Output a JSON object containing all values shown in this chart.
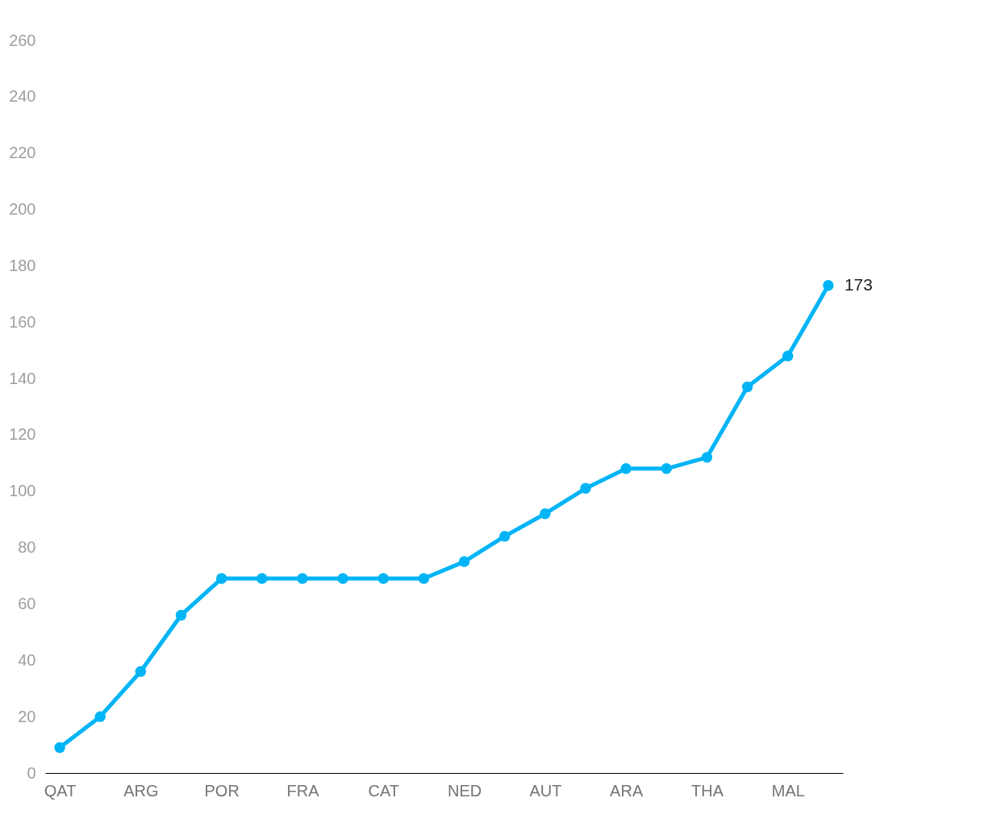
{
  "chart_data": {
    "type": "line",
    "categories": [
      "QAT",
      null,
      "ARG",
      null,
      "POR",
      null,
      "FRA",
      null,
      "CAT",
      null,
      "NED",
      null,
      "AUT",
      null,
      "ARA",
      null,
      "THA",
      null,
      "MAL",
      null
    ],
    "series": [
      {
        "color": "#00b4f5",
        "values": [
          9,
          20,
          36,
          56,
          69,
          69,
          69,
          69,
          69,
          69,
          75,
          84,
          92,
          101,
          108,
          108,
          112,
          137,
          148,
          173
        ],
        "value_labels": [
          null,
          null,
          null,
          null,
          null,
          null,
          null,
          null,
          null,
          null,
          null,
          null,
          null,
          null,
          null,
          null,
          null,
          null,
          null,
          "173"
        ]
      }
    ],
    "ylim": [
      0,
      260
    ],
    "yticks": [
      0,
      20,
      40,
      60,
      80,
      100,
      120,
      140,
      160,
      180,
      200,
      220,
      240,
      260
    ],
    "grid": false,
    "legend": false,
    "marker": "circle",
    "line_style": "solid"
  }
}
